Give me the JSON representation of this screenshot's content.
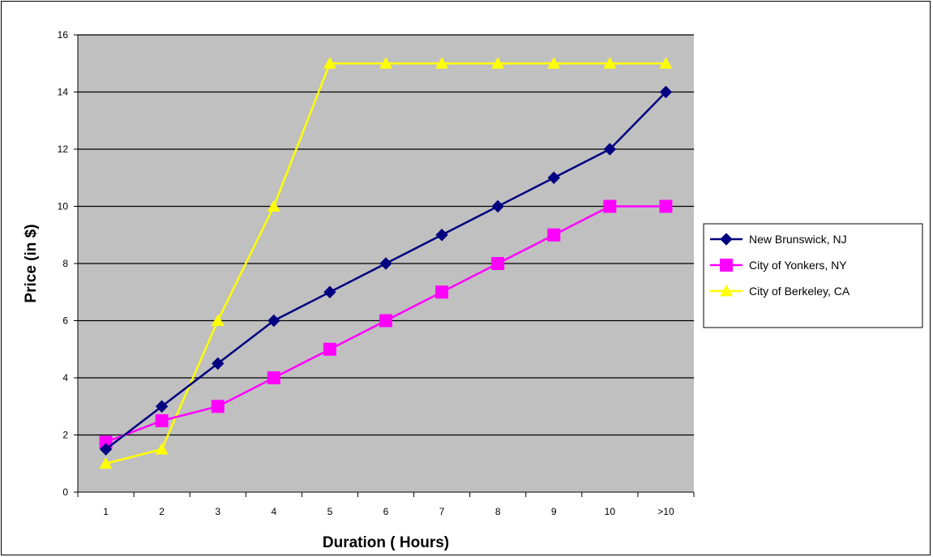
{
  "chart_data": {
    "type": "line",
    "title": "",
    "xlabel": "Duration ( Hours)",
    "ylabel": "Price (in $)",
    "categories": [
      "1",
      "2",
      "3",
      "4",
      "5",
      "6",
      "7",
      "8",
      "9",
      "10",
      ">10"
    ],
    "ylim": [
      0,
      16
    ],
    "yticks": [
      "0",
      "2",
      "4",
      "6",
      "8",
      "10",
      "12",
      "14",
      "16"
    ],
    "grid": true,
    "legend_position": "right",
    "plot_background": "#C0C0C0",
    "series": [
      {
        "name": "New Brunswick, NJ",
        "color": "#000080",
        "marker": "diamond",
        "values": [
          1.5,
          3,
          4.5,
          6,
          7,
          8,
          9,
          10,
          11,
          12,
          14
        ]
      },
      {
        "name": "City of Yonkers, NY",
        "color": "#FF00FF",
        "marker": "square",
        "values": [
          1.75,
          2.5,
          3,
          4,
          5,
          6,
          7,
          8,
          9,
          10,
          10
        ]
      },
      {
        "name": "City of Berkeley, CA",
        "color": "#FFFF00",
        "marker": "triangle",
        "values": [
          1,
          1.5,
          6,
          10,
          15,
          15,
          15,
          15,
          15,
          15,
          15
        ]
      }
    ]
  }
}
